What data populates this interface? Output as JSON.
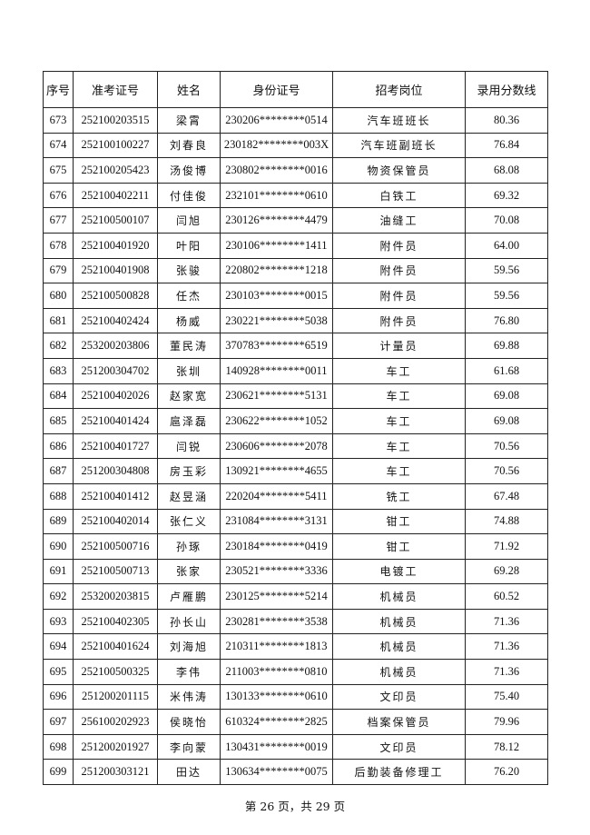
{
  "table": {
    "headers": [
      "序号",
      "准考证号",
      "姓名",
      "身份证号",
      "招考岗位",
      "录用分数线"
    ],
    "rows": [
      [
        "673",
        "252100203515",
        "梁霄",
        "230206********0514",
        "汽车班班长",
        "80.36"
      ],
      [
        "674",
        "252100100227",
        "刘春良",
        "230182********003X",
        "汽车班副班长",
        "76.84"
      ],
      [
        "675",
        "252100205423",
        "汤俊博",
        "230802********0016",
        "物资保管员",
        "68.08"
      ],
      [
        "676",
        "252100402211",
        "付佳俊",
        "232101********0610",
        "白铁工",
        "69.32"
      ],
      [
        "677",
        "252100500107",
        "闫旭",
        "230126********4479",
        "油缝工",
        "70.08"
      ],
      [
        "678",
        "252100401920",
        "叶阳",
        "230106********1411",
        "附件员",
        "64.00"
      ],
      [
        "679",
        "252100401908",
        "张骏",
        "220802********1218",
        "附件员",
        "59.56"
      ],
      [
        "680",
        "252100500828",
        "任杰",
        "230103********0015",
        "附件员",
        "59.56"
      ],
      [
        "681",
        "252100402424",
        "杨威",
        "230221********5038",
        "附件员",
        "76.80"
      ],
      [
        "682",
        "253200203806",
        "董民涛",
        "370783********6519",
        "计量员",
        "69.88"
      ],
      [
        "683",
        "251200304702",
        "张圳",
        "140928********0011",
        "车工",
        "61.68"
      ],
      [
        "684",
        "252100402026",
        "赵家宽",
        "230621********5131",
        "车工",
        "69.08"
      ],
      [
        "685",
        "252100401424",
        "扈泽磊",
        "230622********1052",
        "车工",
        "69.08"
      ],
      [
        "686",
        "252100401727",
        "闫锐",
        "230606********2078",
        "车工",
        "70.56"
      ],
      [
        "687",
        "251200304808",
        "房玉彩",
        "130921********4655",
        "车工",
        "70.56"
      ],
      [
        "688",
        "252100401412",
        "赵昱涵",
        "220204********5411",
        "铣工",
        "67.48"
      ],
      [
        "689",
        "252100402014",
        "张仁义",
        "231084********3131",
        "钳工",
        "74.88"
      ],
      [
        "690",
        "252100500716",
        "孙琢",
        "230184********0419",
        "钳工",
        "71.92"
      ],
      [
        "691",
        "252100500713",
        "张家",
        "230521********3336",
        "电镀工",
        "69.28"
      ],
      [
        "692",
        "253200203815",
        "卢雁鹏",
        "230125********5214",
        "机械员",
        "60.52"
      ],
      [
        "693",
        "252100402305",
        "孙长山",
        "230281********3538",
        "机械员",
        "71.36"
      ],
      [
        "694",
        "252100401624",
        "刘海旭",
        "210311********1813",
        "机械员",
        "71.36"
      ],
      [
        "695",
        "252100500325",
        "李伟",
        "211003********0810",
        "机械员",
        "71.36"
      ],
      [
        "696",
        "251200201115",
        "米伟涛",
        "130133********0610",
        "文印员",
        "75.40"
      ],
      [
        "697",
        "256100202923",
        "侯晓怡",
        "610324********2825",
        "档案保管员",
        "79.96"
      ],
      [
        "698",
        "251200201927",
        "李向蒙",
        "130431********0019",
        "文印员",
        "78.12"
      ],
      [
        "699",
        "251200303121",
        "田达",
        "130634********0075",
        "后勤装备修理工",
        "76.20"
      ]
    ]
  },
  "footer": {
    "page_label": "第 26 页，共 29 页"
  }
}
